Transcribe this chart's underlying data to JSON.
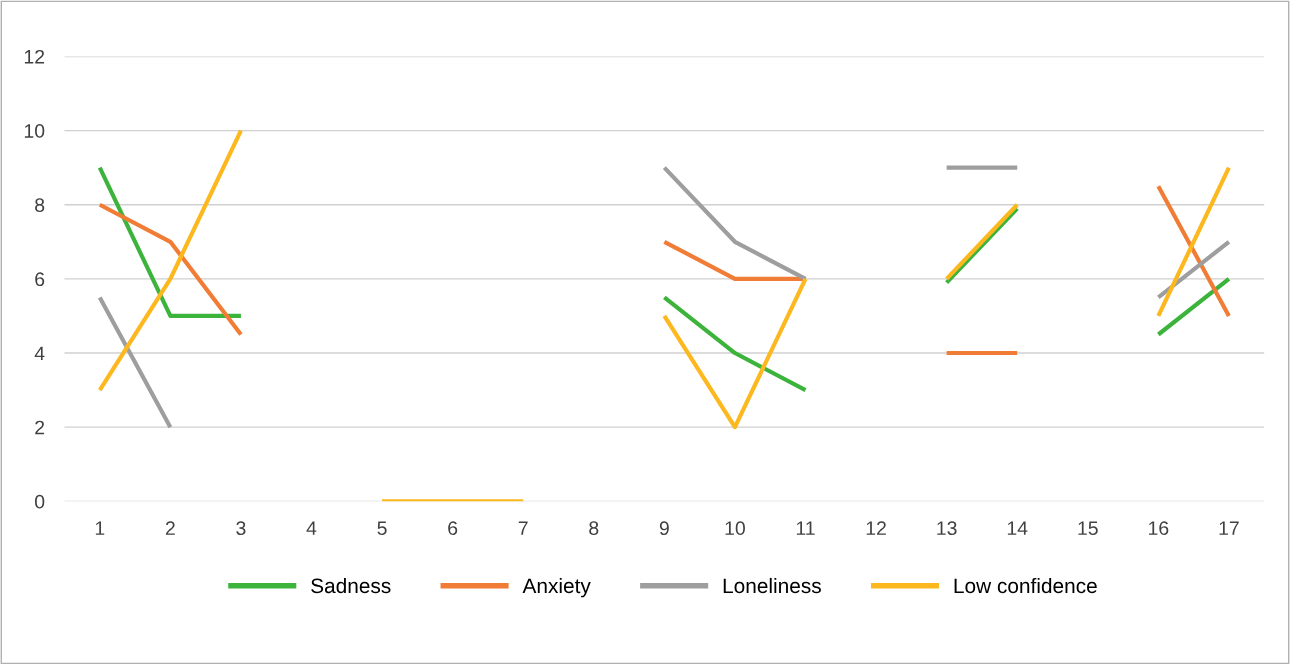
{
  "chart_data": {
    "type": "line",
    "categories": [
      "1",
      "2",
      "3",
      "4",
      "5",
      "6",
      "7",
      "8",
      "9",
      "10",
      "11",
      "12",
      "13",
      "14",
      "15",
      "16",
      "17"
    ],
    "series": [
      {
        "name": "Sadness",
        "color": "#3cb43c",
        "values": [
          9,
          5,
          5,
          null,
          null,
          null,
          null,
          null,
          5.5,
          4,
          3,
          null,
          5.9,
          7.9,
          null,
          4.5,
          6
        ]
      },
      {
        "name": "Anxiety",
        "color": "#f07c36",
        "values": [
          8,
          7,
          4.5,
          null,
          null,
          null,
          null,
          null,
          7,
          6,
          6,
          null,
          4,
          4,
          null,
          8.5,
          5
        ]
      },
      {
        "name": "Loneliness",
        "color": "#9e9e9e",
        "values": [
          5.5,
          2,
          null,
          null,
          null,
          null,
          null,
          null,
          9,
          7,
          6,
          null,
          9,
          9,
          null,
          5.5,
          7
        ]
      },
      {
        "name": "Low confidence",
        "color": "#fcb81e",
        "values": [
          3,
          6,
          10,
          null,
          0,
          0,
          0,
          null,
          5,
          2,
          6,
          null,
          6,
          8,
          null,
          5,
          9
        ]
      }
    ],
    "ylim": [
      0,
      12
    ],
    "yticks": [
      0,
      2,
      4,
      6,
      8,
      10,
      12
    ],
    "grid": "y",
    "legend": "bottom",
    "marker": "none",
    "line_style": "solid"
  }
}
